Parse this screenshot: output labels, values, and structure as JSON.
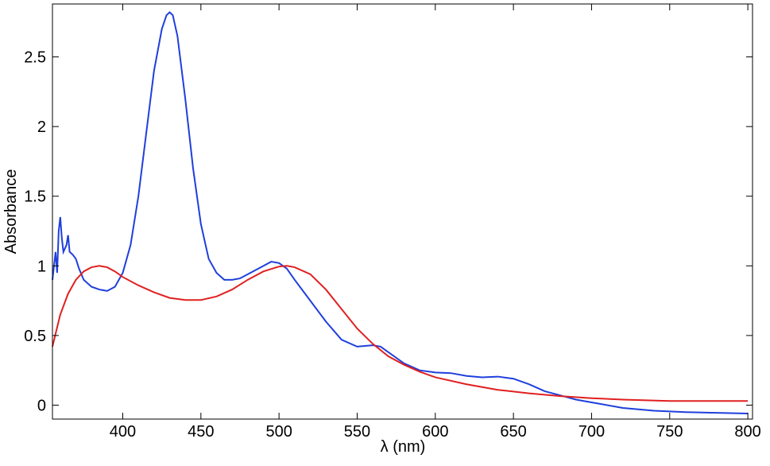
{
  "chart_data": {
    "type": "line",
    "xlabel": "λ (nm)",
    "ylabel": "Absorbance",
    "xlim": [
      355,
      803
    ],
    "ylim": [
      -0.1,
      2.88
    ],
    "xticks": [
      400,
      450,
      500,
      550,
      600,
      650,
      700,
      750,
      800
    ],
    "yticks": [
      0,
      0.5,
      1,
      1.5,
      2,
      2.5
    ],
    "series": [
      {
        "color": "#1f3fdc",
        "x": [
          355,
          357,
          358,
          359,
          360,
          361,
          362,
          364,
          365,
          366,
          368,
          370,
          372,
          375,
          380,
          385,
          390,
          395,
          400,
          405,
          410,
          415,
          420,
          425,
          428,
          430,
          432,
          435,
          440,
          445,
          450,
          455,
          460,
          465,
          470,
          475,
          480,
          485,
          490,
          495,
          500,
          505,
          510,
          520,
          530,
          540,
          550,
          560,
          565,
          570,
          580,
          590,
          600,
          610,
          620,
          630,
          640,
          650,
          660,
          670,
          680,
          690,
          700,
          720,
          740,
          760,
          780,
          800
        ],
        "values": [
          0.9,
          1.1,
          0.95,
          1.25,
          1.35,
          1.2,
          1.1,
          1.15,
          1.22,
          1.1,
          1.08,
          1.05,
          0.98,
          0.9,
          0.85,
          0.83,
          0.82,
          0.85,
          0.95,
          1.15,
          1.5,
          1.95,
          2.4,
          2.7,
          2.8,
          2.82,
          2.8,
          2.65,
          2.2,
          1.7,
          1.3,
          1.05,
          0.95,
          0.9,
          0.9,
          0.91,
          0.94,
          0.97,
          1.0,
          1.03,
          1.02,
          0.98,
          0.9,
          0.75,
          0.6,
          0.47,
          0.42,
          0.43,
          0.42,
          0.38,
          0.3,
          0.25,
          0.235,
          0.23,
          0.21,
          0.2,
          0.205,
          0.19,
          0.15,
          0.1,
          0.07,
          0.04,
          0.02,
          -0.02,
          -0.04,
          -0.05,
          -0.055,
          -0.06
        ]
      },
      {
        "color": "#e02020",
        "x": [
          355,
          360,
          365,
          370,
          375,
          380,
          385,
          390,
          395,
          400,
          410,
          420,
          430,
          440,
          450,
          460,
          470,
          480,
          490,
          500,
          505,
          510,
          520,
          530,
          540,
          550,
          560,
          570,
          580,
          590,
          600,
          620,
          640,
          660,
          680,
          700,
          720,
          750,
          800
        ],
        "values": [
          0.42,
          0.65,
          0.8,
          0.9,
          0.96,
          0.99,
          1.0,
          0.99,
          0.96,
          0.92,
          0.86,
          0.81,
          0.77,
          0.755,
          0.755,
          0.78,
          0.83,
          0.9,
          0.96,
          0.995,
          1.0,
          0.99,
          0.94,
          0.83,
          0.69,
          0.55,
          0.44,
          0.35,
          0.29,
          0.24,
          0.2,
          0.15,
          0.11,
          0.085,
          0.065,
          0.05,
          0.04,
          0.03,
          0.03
        ]
      }
    ]
  }
}
